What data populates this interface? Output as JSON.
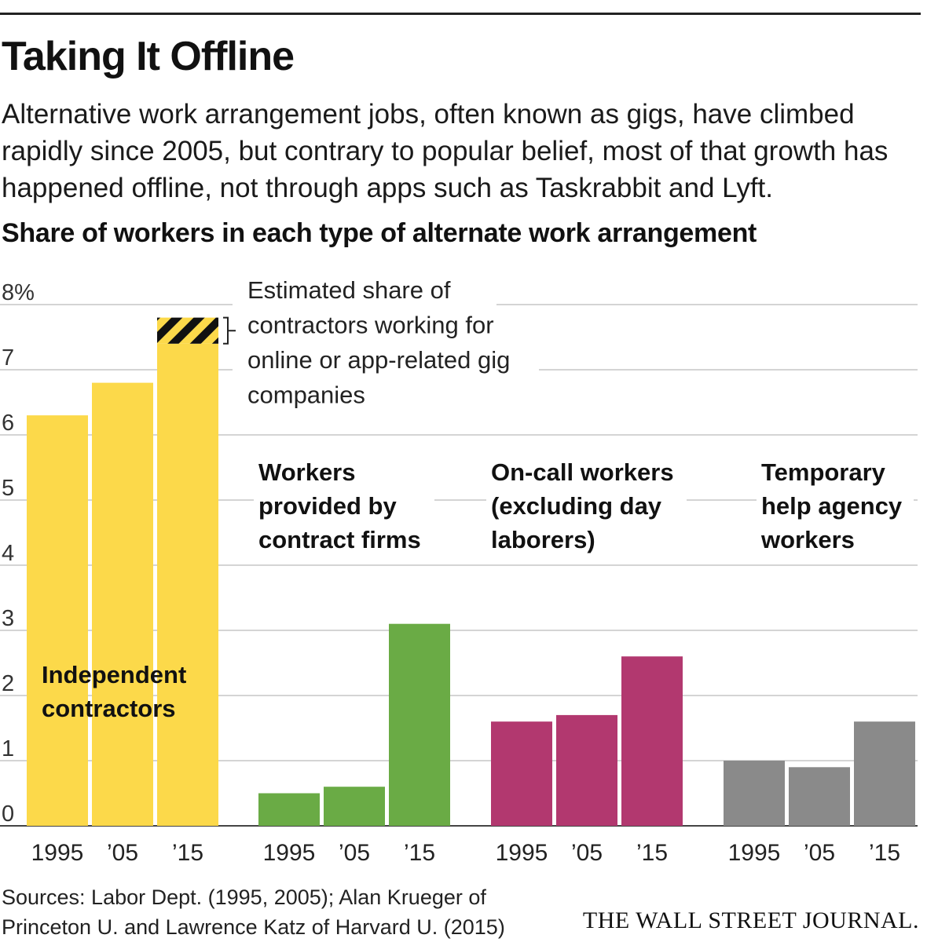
{
  "header": {
    "title": "Taking It Offline",
    "subtitle": "Alternative work arrangement jobs, often known as gigs, have climbed rapidly since 2005, but contrary to popular belief, most of that growth has happened offline, not through apps such as Taskrabbit and Lyft."
  },
  "footer": {
    "source_line1": "Sources: Labor Dept. (1995, 2005); Alan Krueger of",
    "source_line2": "Princeton U. and Lawrence Katz of Harvard U. (2015)",
    "brand": "THE WALL STREET JOURNAL."
  },
  "chart_data": {
    "type": "bar",
    "title": "Share of workers in each type of alternate work arrangement",
    "ylim": [
      0,
      8
    ],
    "yticks": [
      {
        "value": 0,
        "label": "0"
      },
      {
        "value": 1,
        "label": "1"
      },
      {
        "value": 2,
        "label": "2"
      },
      {
        "value": 3,
        "label": "3"
      },
      {
        "value": 4,
        "label": "4"
      },
      {
        "value": 5,
        "label": "5"
      },
      {
        "value": 6,
        "label": "6"
      },
      {
        "value": 7,
        "label": "7"
      },
      {
        "value": 8,
        "label": "8%"
      }
    ],
    "grid": true,
    "categories": [
      "1995",
      "’05",
      "’15"
    ],
    "series": [
      {
        "name": "Independent contractors",
        "color": "#fcd94a",
        "values": [
          6.3,
          6.8,
          7.4
        ]
      },
      {
        "name": "Workers provided by contract firms",
        "color": "#6aab45",
        "values": [
          0.5,
          0.6,
          3.1
        ]
      },
      {
        "name": "On-call workers (excluding day laborers)",
        "color": "#b2386f",
        "values": [
          1.6,
          1.7,
          2.6
        ]
      },
      {
        "name": "Temporary help agency workers",
        "color": "#8a8a8a",
        "values": [
          1.0,
          0.9,
          1.6
        ]
      }
    ],
    "annotation": {
      "text": "Estimated share of contractors working for online or app-related gig companies",
      "value": 0.4,
      "applies_to": "Independent contractors, ’15",
      "pattern": "black and yellow diagonal stripes"
    }
  }
}
